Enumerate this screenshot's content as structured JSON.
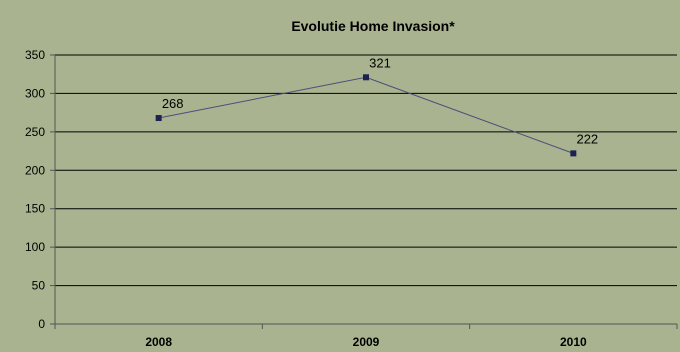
{
  "chart_data": {
    "type": "line",
    "title": "Evolutie Home Invasion*",
    "categories": [
      "2008",
      "2009",
      "2010"
    ],
    "series": [
      {
        "values": [
          268,
          321,
          222
        ]
      }
    ],
    "data_labels": [
      "268",
      "321",
      "222"
    ],
    "yticks": [
      "0",
      "50",
      "100",
      "150",
      "200",
      "250",
      "300",
      "350"
    ],
    "ylim": [
      0,
      350
    ],
    "xlabel": "",
    "ylabel": "",
    "grid": true,
    "legend": "none",
    "colors": {
      "background": "#a9b38f",
      "line": "#4a4f7a",
      "marker": "#1e2250",
      "grid": "#000000"
    }
  }
}
